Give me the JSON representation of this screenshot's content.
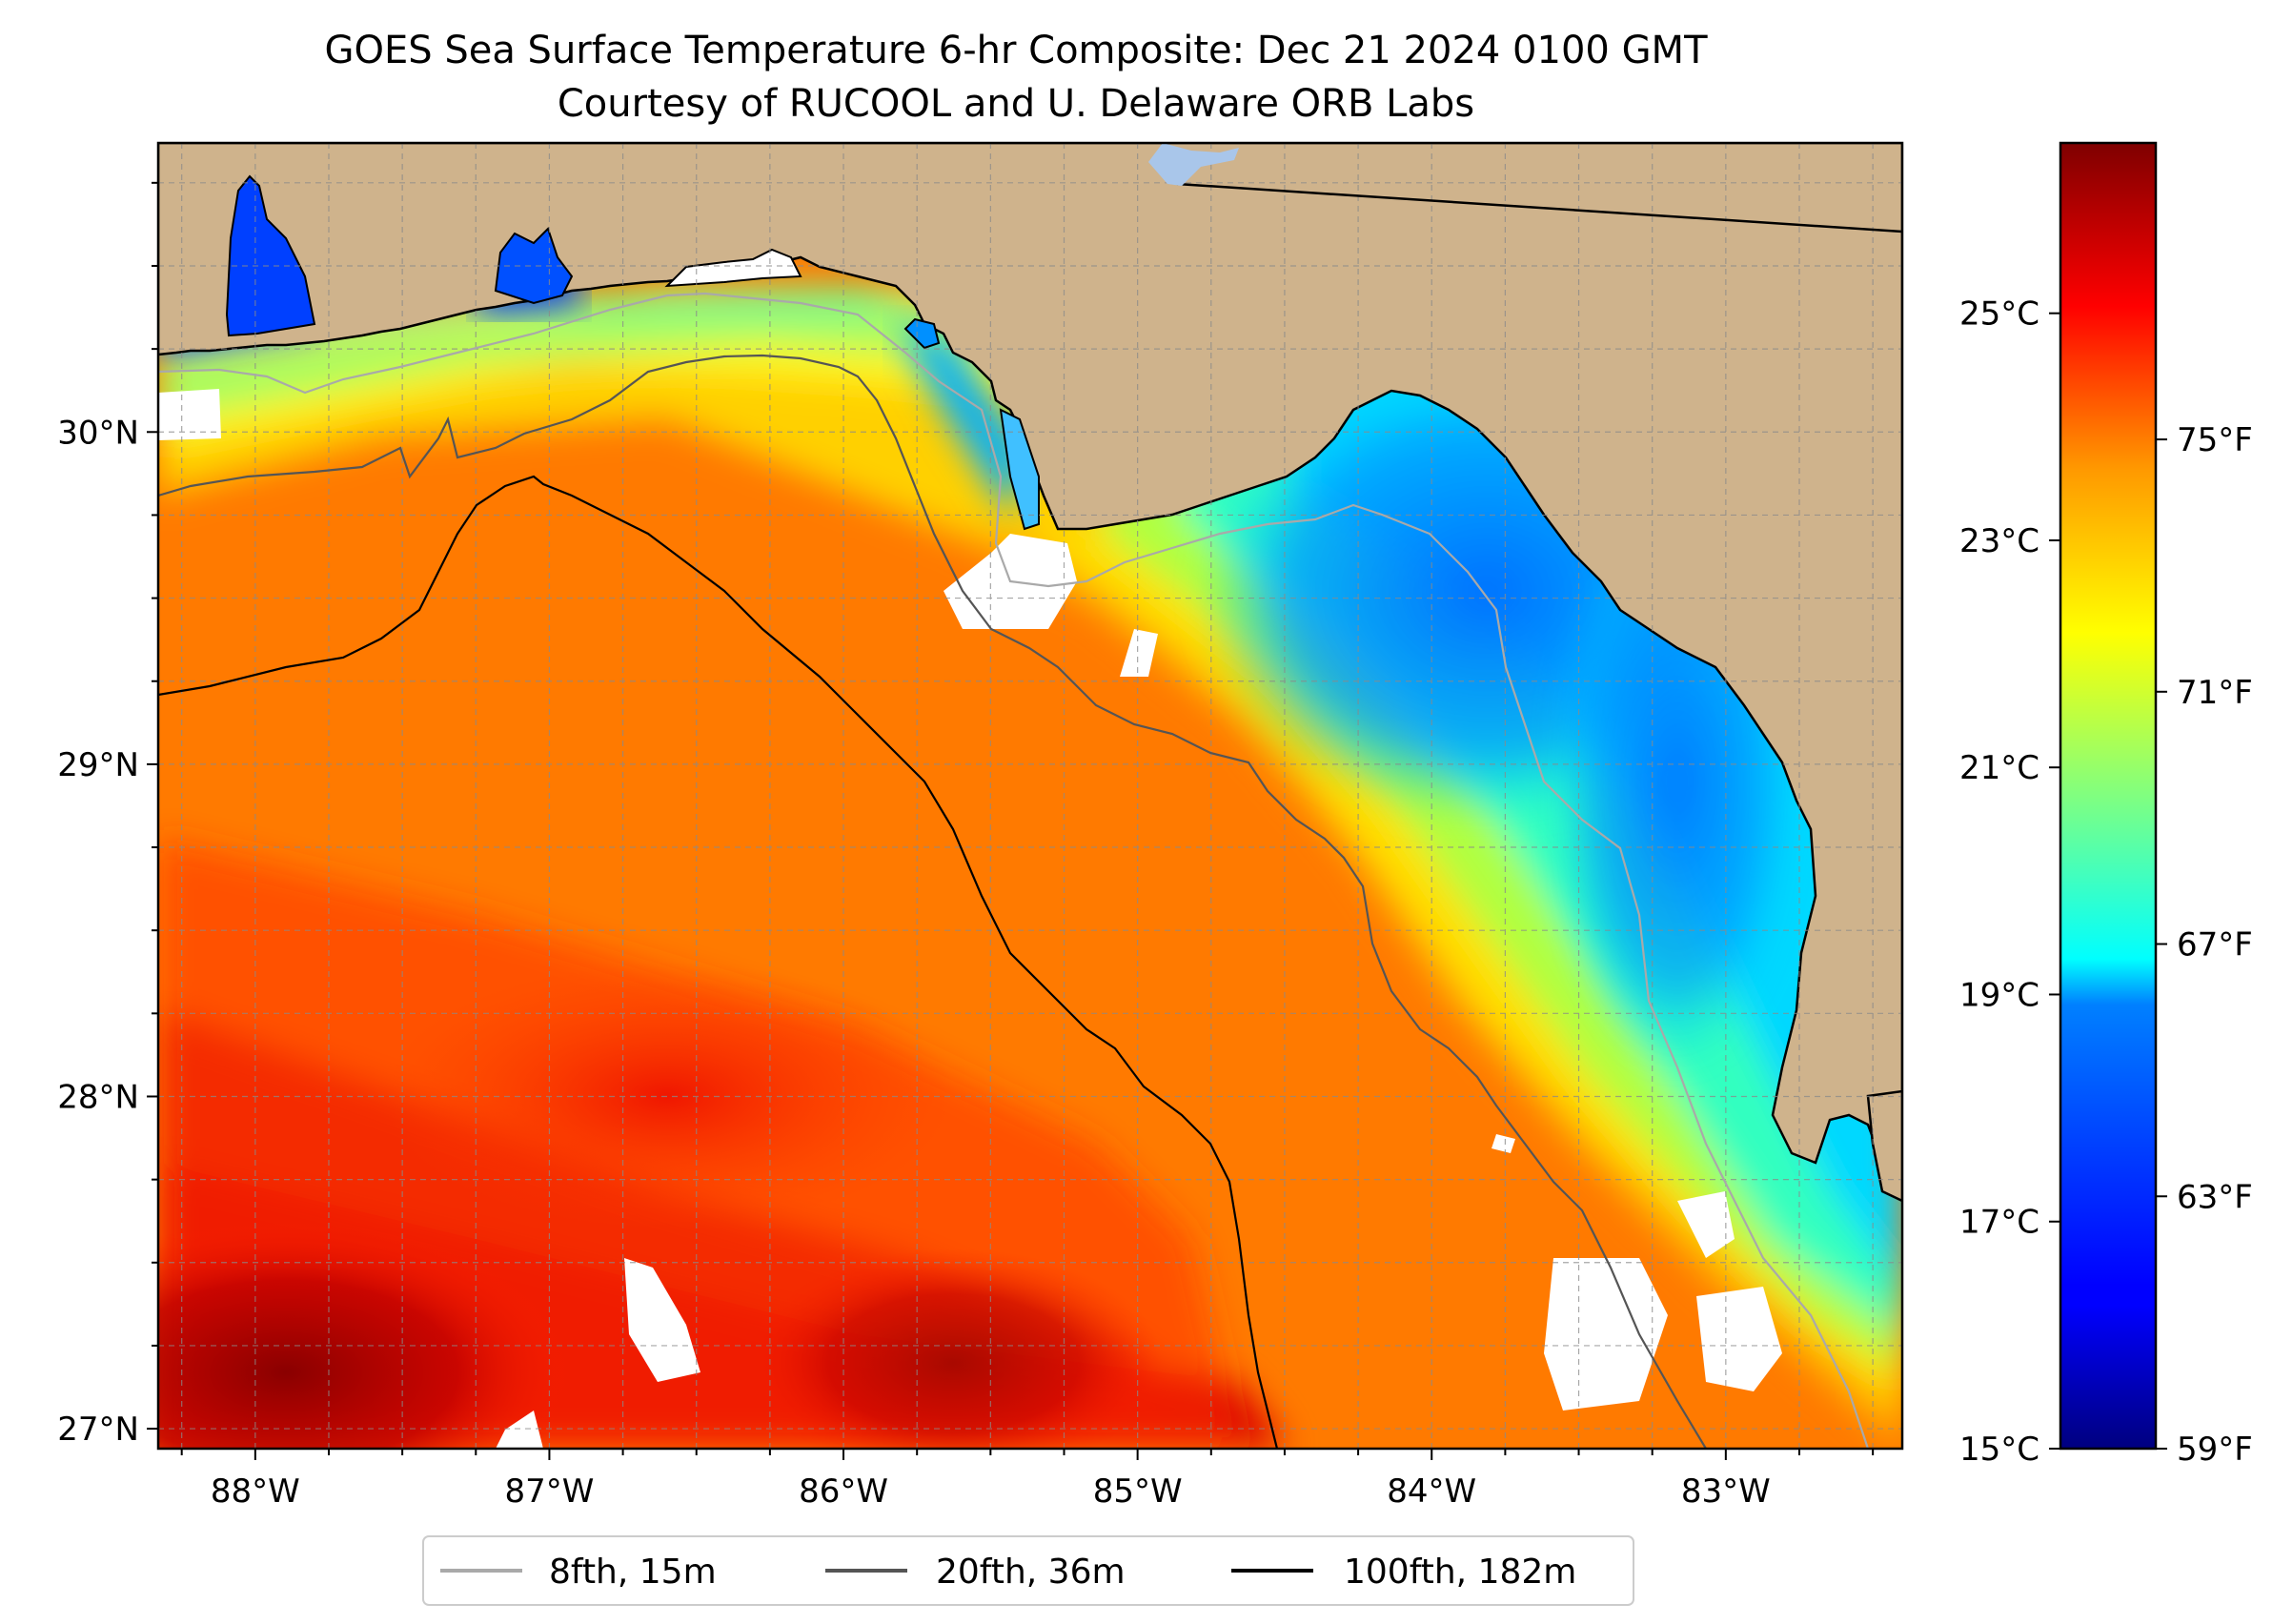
{
  "title": {
    "line1": "GOES Sea Surface Temperature 6-hr Composite: Dec 21 2024 0100 GMT",
    "line2": "Courtesy of RUCOOL and U. Delaware ORB Labs"
  },
  "map": {
    "lon_range": [
      -88.33,
      -82.4
    ],
    "lat_range": [
      26.94,
      30.87
    ],
    "lon_ticks": [
      {
        "value": -88,
        "label": "88°W"
      },
      {
        "value": -87,
        "label": "87°W"
      },
      {
        "value": -86,
        "label": "86°W"
      },
      {
        "value": -85,
        "label": "85°W"
      },
      {
        "value": -84,
        "label": "84°W"
      },
      {
        "value": -83,
        "label": "83°W"
      }
    ],
    "lat_ticks": [
      {
        "value": 30,
        "label": "30°N"
      },
      {
        "value": 29,
        "label": "29°N"
      },
      {
        "value": 28,
        "label": "28°N"
      },
      {
        "value": 27,
        "label": "27°N"
      }
    ],
    "grid": "dashed, 0.25° spacing",
    "land_color": "#cfb38c",
    "no_data_color": "#ffffff"
  },
  "colorbar": {
    "colormap": "jet",
    "min_c": 15,
    "max_c": 26.5,
    "celsius_ticks": [
      {
        "value": 25,
        "label": "25°C"
      },
      {
        "value": 23,
        "label": "23°C"
      },
      {
        "value": 21,
        "label": "21°C"
      },
      {
        "value": 19,
        "label": "19°C"
      },
      {
        "value": 17,
        "label": "17°C"
      },
      {
        "value": 15,
        "label": "15°C"
      }
    ],
    "fahrenheit_ticks": [
      {
        "value": 75,
        "label": "75°F"
      },
      {
        "value": 71,
        "label": "71°F"
      },
      {
        "value": 67,
        "label": "67°F"
      },
      {
        "value": 63,
        "label": "63°F"
      },
      {
        "value": 59,
        "label": "59°F"
      }
    ]
  },
  "legend": {
    "placement": "bottom-center",
    "items": [
      {
        "label": "8fth, 15m",
        "color": "#a9a9a9"
      },
      {
        "label": "20fth, 36m",
        "color": "#555555"
      },
      {
        "label": "100fth, 182m",
        "color": "#000000"
      }
    ]
  }
}
